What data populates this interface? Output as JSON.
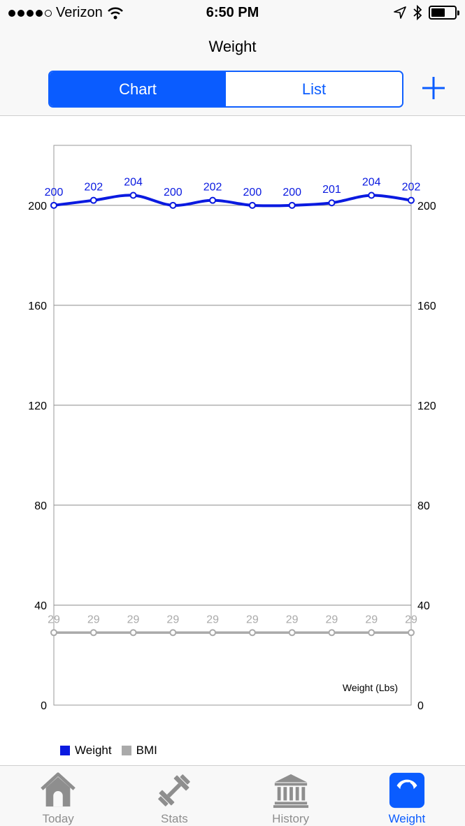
{
  "status": {
    "carrier": "Verizon",
    "time": "6:50 PM"
  },
  "nav": {
    "title": "Weight",
    "segments": [
      "Chart",
      "List"
    ],
    "selected_segment": "Chart"
  },
  "chart_data": {
    "type": "line",
    "x": [
      1,
      2,
      3,
      4,
      5,
      6,
      7,
      8,
      9,
      10
    ],
    "series": [
      {
        "name": "Weight",
        "color": "#0a1ae0",
        "values": [
          200,
          202,
          204,
          200,
          202,
          200,
          200,
          201,
          204,
          202
        ],
        "labels": [
          "200",
          "202",
          "204",
          "200",
          "202",
          "200",
          "200",
          "201",
          "204",
          "202"
        ]
      },
      {
        "name": "BMI",
        "color": "#aaaaaa",
        "values": [
          29,
          29,
          29,
          29,
          29,
          29,
          29,
          29,
          29,
          29
        ],
        "labels": [
          "29",
          "29",
          "29",
          "29",
          "29",
          "29",
          "29",
          "29",
          "29",
          "29"
        ]
      }
    ],
    "yticks": [
      "0",
      "40",
      "80",
      "120",
      "160",
      "200"
    ],
    "ylim": [
      0,
      224
    ],
    "annotation": "Weight (Lbs)",
    "legend": [
      "Weight",
      "BMI"
    ]
  },
  "tabs": [
    {
      "label": "Today",
      "icon": "house-icon"
    },
    {
      "label": "Stats",
      "icon": "dumbbell-icon"
    },
    {
      "label": "History",
      "icon": "bank-icon"
    },
    {
      "label": "Weight",
      "icon": "scale-icon",
      "active": true
    }
  ],
  "colors": {
    "accent": "#0a5cff",
    "weight_line": "#0a1ae0",
    "bmi_line": "#aaaaaa"
  }
}
